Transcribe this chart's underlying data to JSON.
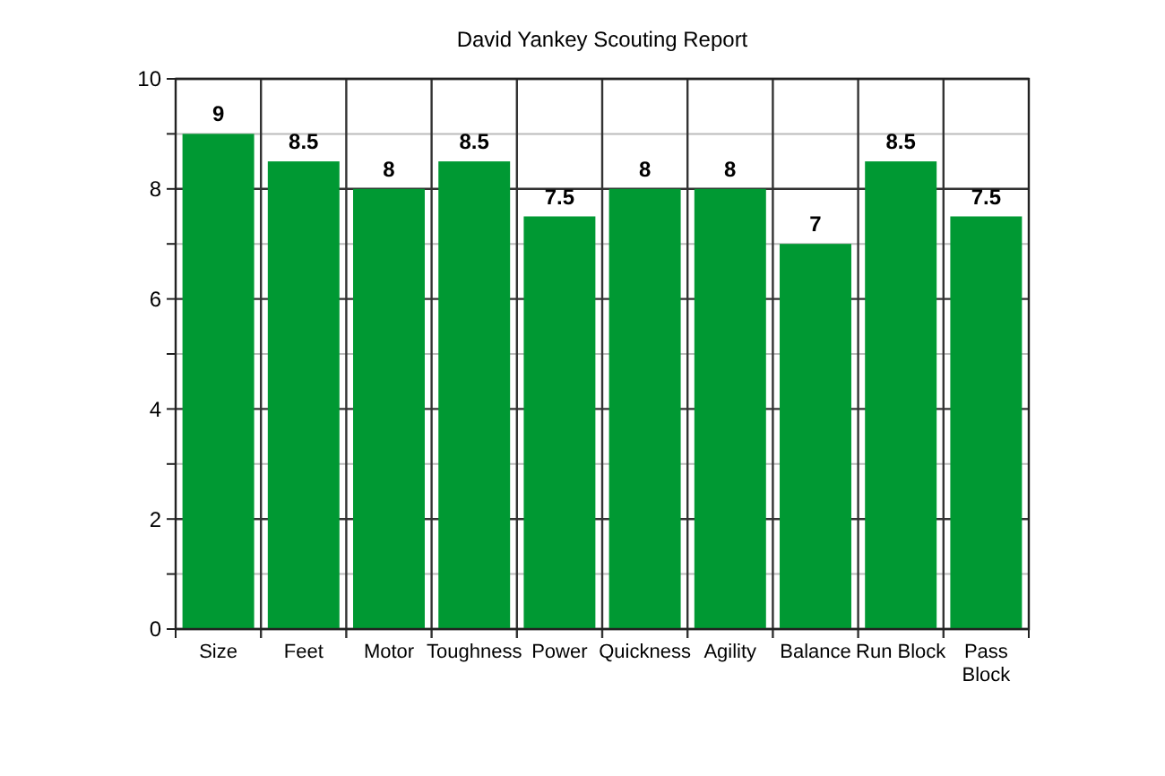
{
  "chart_data": {
    "type": "bar",
    "title": "David Yankey Scouting Report",
    "categories": [
      "Size",
      "Feet",
      "Motor",
      "Toughness",
      "Power",
      "Quickness",
      "Agility",
      "Balance",
      "Run Block",
      "Pass Block"
    ],
    "values": [
      9,
      8.5,
      8,
      8.5,
      7.5,
      8,
      8,
      7,
      8.5,
      7.5
    ],
    "color": "#009933",
    "ylim": [
      0,
      10
    ],
    "yticks": [
      0,
      {
        "value": 1,
        "label": null
      },
      2,
      {
        "value": 3,
        "label": null
      },
      4,
      {
        "value": 5,
        "label": null
      },
      6,
      {
        "value": 7,
        "label": null
      },
      8,
      {
        "value": 9,
        "label": null
      },
      10
    ],
    "grid": true,
    "data_labels": true
  }
}
